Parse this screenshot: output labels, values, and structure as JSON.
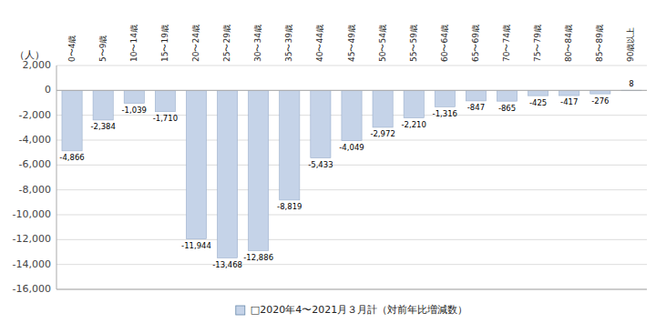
{
  "chart_data": {
    "type": "bar",
    "y_label": "（人）",
    "categories": [
      "0〜4歳",
      "5〜9歳",
      "10〜14歳",
      "15〜19歳",
      "20〜24歳",
      "25〜29歳",
      "30〜34歳",
      "35〜39歳",
      "40〜44歳",
      "45〜49歳",
      "50〜54歳",
      "55〜59歳",
      "60〜64歳",
      "65〜69歳",
      "70〜74歳",
      "75〜79歳",
      "80〜84歳",
      "85〜89歳",
      "90歳以上"
    ],
    "series": [
      {
        "name": "□2020年4〜2021月３月計（対前年比増減数）",
        "color": "#c5d3e8",
        "values": [
          -4866,
          -2384,
          -1039,
          -1710,
          -11944,
          -13468,
          -12886,
          -8819,
          -5433,
          -4049,
          -2972,
          -2210,
          -1316,
          -847,
          -865,
          -425,
          -417,
          -276,
          8
        ],
        "value_labels": [
          "-4,866",
          "-2,384",
          "-1,039",
          "-1,710",
          "-11,944",
          "-13,468",
          "-12,886",
          "-8,819",
          "-5,433",
          "-4,049",
          "-2,972",
          "-2,210",
          "-1,316",
          "-847",
          "-865",
          "-425",
          "-417",
          "-276",
          "8"
        ]
      }
    ],
    "ylim": [
      -16000,
      2000
    ],
    "yticks": [
      {
        "value": 2000,
        "label": "2,000"
      },
      0,
      {
        "value": -2000,
        "label": "-2,000"
      },
      {
        "value": -4000,
        "label": "-4,000"
      },
      {
        "value": -6000,
        "label": "-6,000"
      },
      {
        "value": -8000,
        "label": "-8,000"
      },
      {
        "value": -10000,
        "label": "-10,000"
      },
      {
        "value": -12000,
        "label": "-12,000"
      },
      {
        "value": -14000,
        "label": "-14,000"
      },
      {
        "value": -16000,
        "label": "-16,000"
      }
    ],
    "grid": true,
    "data_labels": true,
    "legend": "bottom"
  }
}
